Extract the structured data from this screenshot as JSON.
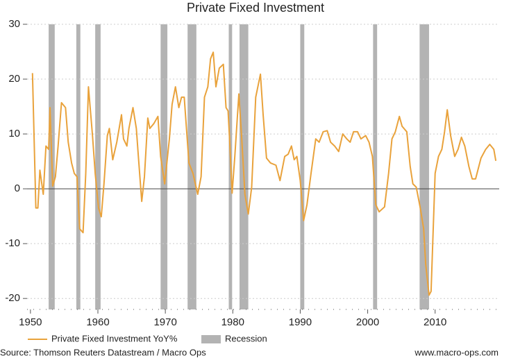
{
  "chart_data": {
    "type": "line",
    "title": "Private Fixed Investment",
    "source": "Source: Thomson Reuters Datastream / Macro Ops",
    "website": "www.macro-ops.com",
    "recession_label": "Recession",
    "recession_color": "#b3b3b3",
    "recessions": [
      [
        1952.7,
        1953.6
      ],
      [
        1956.8,
        1957.4
      ],
      [
        1959.6,
        1960.4
      ],
      [
        1969.3,
        1970.3
      ],
      [
        1973.3,
        1974.6
      ],
      [
        1979.4,
        1979.9
      ],
      [
        1981.0,
        1982.3
      ],
      [
        1990.0,
        1990.6
      ],
      [
        2000.8,
        2001.4
      ],
      [
        2007.7,
        2009.1
      ]
    ],
    "xlim": [
      1949.5,
      2019.5
    ],
    "xticks": [
      1950,
      1960,
      1970,
      1980,
      1990,
      2000,
      2010
    ],
    "ylim": [
      -22,
      30
    ],
    "yticks": [
      -20,
      -10,
      0,
      10,
      20,
      30
    ],
    "grid": true,
    "legend": "bottom",
    "x": [
      1950.3,
      1950.8,
      1951.1,
      1951.4,
      1951.9,
      1952.3,
      1952.7,
      1952.9,
      1953.3,
      1953.7,
      1954.1,
      1954.6,
      1955.2,
      1955.6,
      1956.1,
      1956.5,
      1956.9,
      1957.3,
      1957.8,
      1958.2,
      1958.6,
      1959.2,
      1959.6,
      1960.1,
      1960.5,
      1960.9,
      1961.4,
      1961.7,
      1962.2,
      1962.8,
      1963.5,
      1963.8,
      1964.3,
      1964.6,
      1965.2,
      1965.7,
      1966.0,
      1966.5,
      1966.9,
      1967.4,
      1967.7,
      1968.3,
      1968.9,
      1969.3,
      1969.9,
      1970.6,
      1971.0,
      1971.5,
      1972.0,
      1972.4,
      1972.8,
      1973.5,
      1974.1,
      1974.8,
      1975.3,
      1975.8,
      1976.3,
      1976.7,
      1977.1,
      1977.5,
      1978.0,
      1978.6,
      1979.0,
      1979.3,
      1979.5,
      1979.9,
      1980.3,
      1980.9,
      1981.3,
      1981.8,
      1982.3,
      1982.8,
      1983.4,
      1984.1,
      1984.5,
      1985.0,
      1985.6,
      1986.4,
      1987.0,
      1987.7,
      1988.2,
      1988.7,
      1989.1,
      1989.5,
      1990.0,
      1990.5,
      1991.0,
      1991.6,
      1992.3,
      1992.8,
      1993.4,
      1994.0,
      1994.5,
      1995.1,
      1995.7,
      1996.3,
      1996.9,
      1997.4,
      1997.9,
      1998.5,
      1999.0,
      1999.7,
      2000.2,
      2000.7,
      2001.2,
      2001.7,
      2002.5,
      2003.1,
      2003.6,
      2004.1,
      2004.7,
      2005.1,
      2005.8,
      2006.3,
      2006.7,
      2007.2,
      2007.8,
      2008.3,
      2008.6,
      2009.1,
      2009.4,
      2010.0,
      2010.5,
      2011.0,
      2011.4,
      2011.8,
      2012.3,
      2012.9,
      2013.4,
      2013.9,
      2014.4,
      2015.0,
      2015.5,
      2016.0,
      2016.8,
      2017.5,
      2018.1,
      2018.7,
      2019.0
    ],
    "series": [
      {
        "name": "Private Fixed Investment YoY%",
        "color": "#e9a23b",
        "values": [
          21.1,
          -3.5,
          -3.5,
          3.4,
          -1,
          7.8,
          7.2,
          14.8,
          0.5,
          2.2,
          7.8,
          15.7,
          14.8,
          8.5,
          4.7,
          2.8,
          2.2,
          -7.3,
          -8.0,
          2.8,
          18.6,
          9.7,
          2.8,
          -3.5,
          -5.1,
          0.9,
          9.7,
          11.0,
          5.3,
          8.5,
          13.5,
          9.1,
          7.8,
          11.0,
          14.8,
          11.0,
          5.9,
          -2.3,
          2.2,
          12.9,
          11.0,
          11.9,
          13.2,
          5.9,
          0.9,
          9.1,
          15.4,
          18.6,
          14.8,
          16.7,
          16.7,
          4.7,
          2.8,
          -1.0,
          2.2,
          16.7,
          18.6,
          23.7,
          24.9,
          18.6,
          22.0,
          22.7,
          14.8,
          14.2,
          9.7,
          -0.8,
          5.9,
          17.3,
          9.7,
          -1.0,
          -4.6,
          0.3,
          16.7,
          20.9,
          13.5,
          5.6,
          4.7,
          4.3,
          1.5,
          5.9,
          6.3,
          7.8,
          5.3,
          5.9,
          1.5,
          -5.8,
          -2.9,
          2.8,
          9.1,
          8.5,
          10.4,
          10.6,
          8.5,
          7.8,
          6.8,
          10.0,
          9.1,
          8.5,
          10.4,
          10.4,
          9.1,
          9.7,
          8.5,
          5.9,
          -2.9,
          -4.2,
          -3.3,
          2.8,
          9.1,
          10.4,
          13.2,
          11.4,
          10.4,
          4.1,
          0.9,
          0.3,
          -3.5,
          -7.3,
          -13.7,
          -19.4,
          -18.7,
          2.8,
          5.9,
          7.2,
          10.4,
          14.4,
          9.7,
          5.9,
          7.2,
          9.4,
          7.8,
          4.1,
          1.8,
          1.8,
          5.6,
          7.2,
          8.1,
          7.2,
          5.1
        ]
      }
    ]
  }
}
